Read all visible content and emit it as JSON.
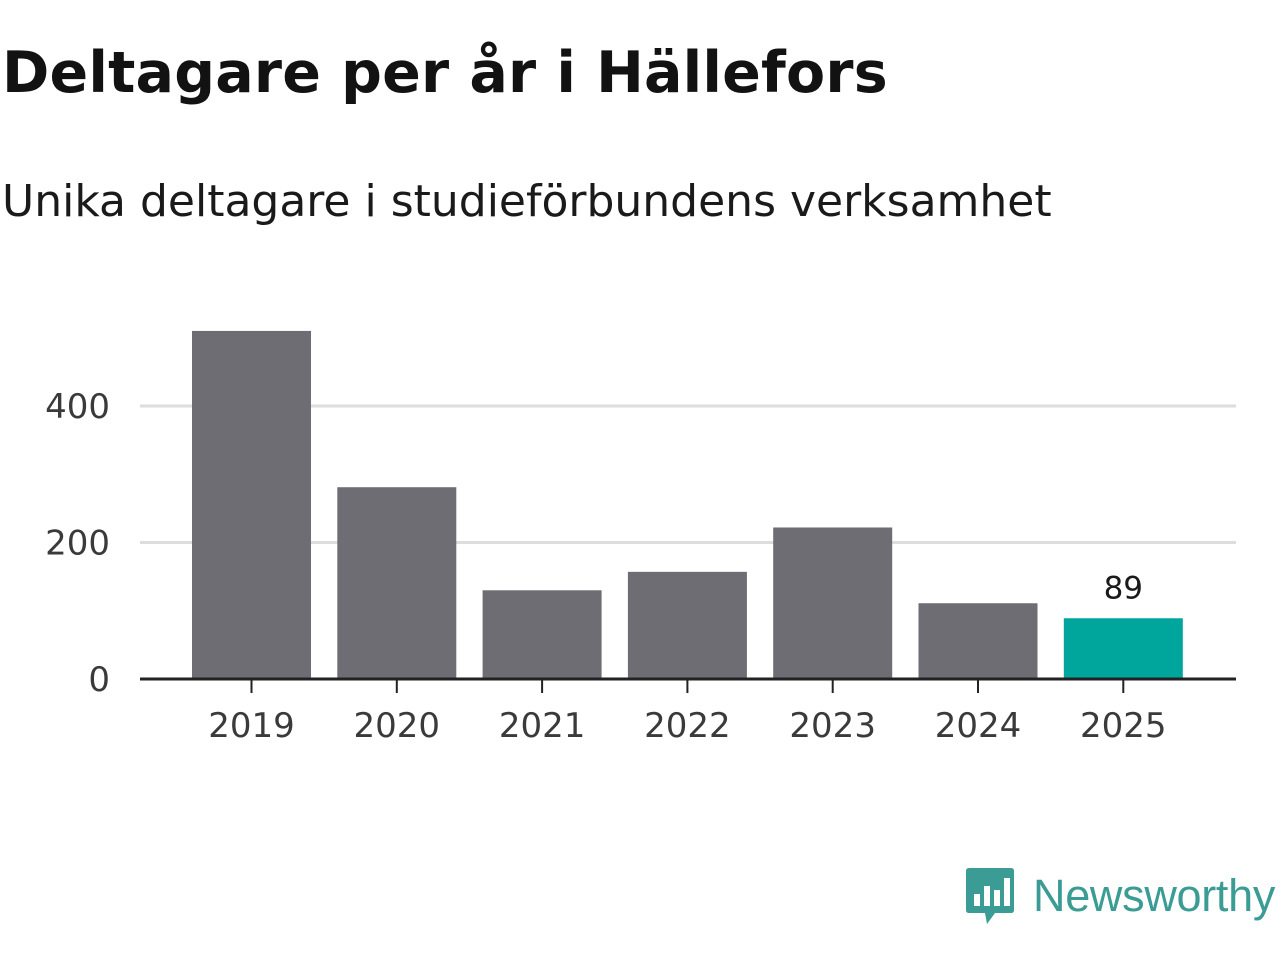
{
  "title": "Deltagare per år i Hällefors",
  "subtitle": "Unika deltagare i studieförbundens verksamhet",
  "colors": {
    "bar": "#6e6d73",
    "highlight": "#00a59c",
    "grid": "#dddddd",
    "axis": "#222222",
    "brand": "#3a9c94"
  },
  "brand": {
    "name": "Newsworthy",
    "icon": "bar-chart-speech-bubble-icon"
  },
  "chart_data": {
    "type": "bar",
    "title": "Deltagare per år i Hällefors",
    "subtitle": "Unika deltagare i studieförbundens verksamhet",
    "categories": [
      "2019",
      "2020",
      "2021",
      "2022",
      "2023",
      "2024",
      "2025"
    ],
    "values": [
      510,
      281,
      130,
      157,
      222,
      111,
      89
    ],
    "highlight_index": 6,
    "data_labels": [
      {
        "index": 6,
        "text": "89"
      }
    ],
    "yticks": [
      0,
      200,
      400
    ],
    "ylim": [
      0,
      520
    ],
    "xlabel": "",
    "ylabel": "",
    "grid": true
  }
}
